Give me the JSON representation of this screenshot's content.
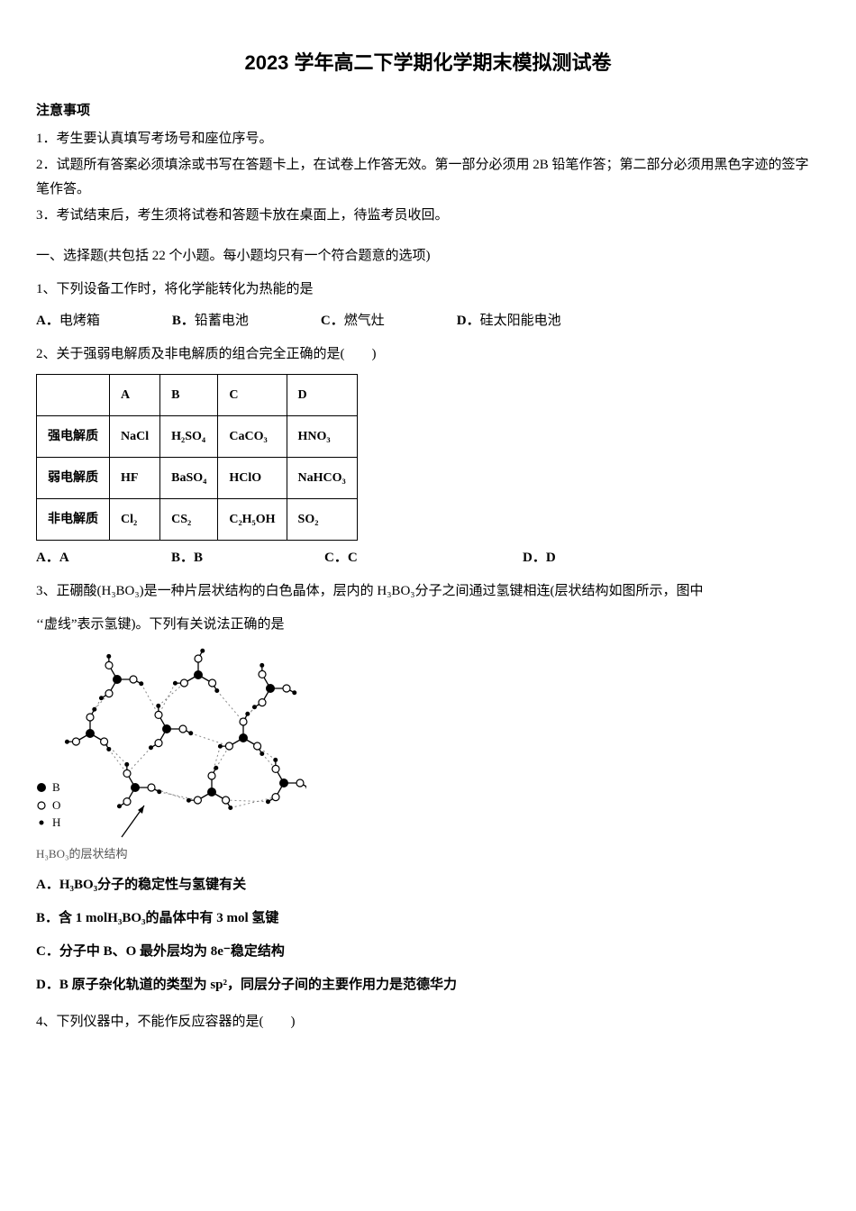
{
  "title": "2023 学年高二下学期化学期末模拟测试卷",
  "notice": {
    "heading": "注意事项",
    "items": [
      "1．考生要认真填写考场号和座位序号。",
      "2．试题所有答案必须填涂或书写在答题卡上，在试卷上作答无效。第一部分必须用 2B 铅笔作答；第二部分必须用黑色字迹的签字笔作答。",
      "3．考试结束后，考生须将试卷和答题卡放在桌面上，待监考员收回。"
    ]
  },
  "section1": {
    "heading": "一、选择题(共包括 22 个小题。每小题均只有一个符合题意的选项)"
  },
  "q1": {
    "text": "1、下列设备工作时，将化学能转化为热能的是",
    "options": {
      "A": "电烤箱",
      "B": "铅蓄电池",
      "C": "燃气灶",
      "D": "硅太阳能电池"
    }
  },
  "q2": {
    "text": "2、关于强弱电解质及非电解质的组合完全正确的是(　　)",
    "table": {
      "headers": [
        "",
        "A",
        "B",
        "C",
        "D"
      ],
      "rows": [
        {
          "label": "强电解质",
          "A": "NaCl",
          "B": "H₂SO₄",
          "C": "CaCO₃",
          "D": "HNO₃"
        },
        {
          "label": "弱电解质",
          "A": "HF",
          "B": "BaSO₄",
          "C": "HClO",
          "D": "NaHCO₃"
        },
        {
          "label": "非电解质",
          "A": "Cl₂",
          "B": "CS₂",
          "C": "C₂H₅OH",
          "D": "SO₂"
        }
      ]
    },
    "opts": {
      "A": "A．A",
      "B": "B．B",
      "C": "C．C",
      "D": "D．D"
    }
  },
  "q3": {
    "text_1": "3、正硼酸(H₃BO₃)是一种片层状结构的白色晶体，层内的 H₃BO₃分子之间通过氢键相连(层状结构如图所示，图中",
    "text_2": "‘‘虚线”表示氢键)。下列有关说法正确的是",
    "legend": {
      "B": "B",
      "O": "O",
      "H": "H"
    },
    "caption": "H₃BO₃的层状结构",
    "stmts": {
      "A": "A．H₃BO₃分子的稳定性与氢键有关",
      "B": "B．含 1 molH₃BO₃的晶体中有 3 mol 氢键",
      "C": "C．分子中 B、O 最外层均为 8e⁻稳定结构",
      "D": "D．B 原子杂化轨道的类型为 sp²，同层分子间的主要作用力是范德华力"
    }
  },
  "q4": {
    "text": "4、下列仪器中，不能作反应容器的是(　　)"
  },
  "diagram": {
    "node_radius_B": 5,
    "node_radius_O": 4,
    "node_radius_H": 2.5,
    "color_B": "#000000",
    "color_O_fill": "#ffffff",
    "color_O_stroke": "#000000",
    "color_H": "#000000",
    "bond_color": "#000000",
    "hbond_color": "#888888"
  }
}
